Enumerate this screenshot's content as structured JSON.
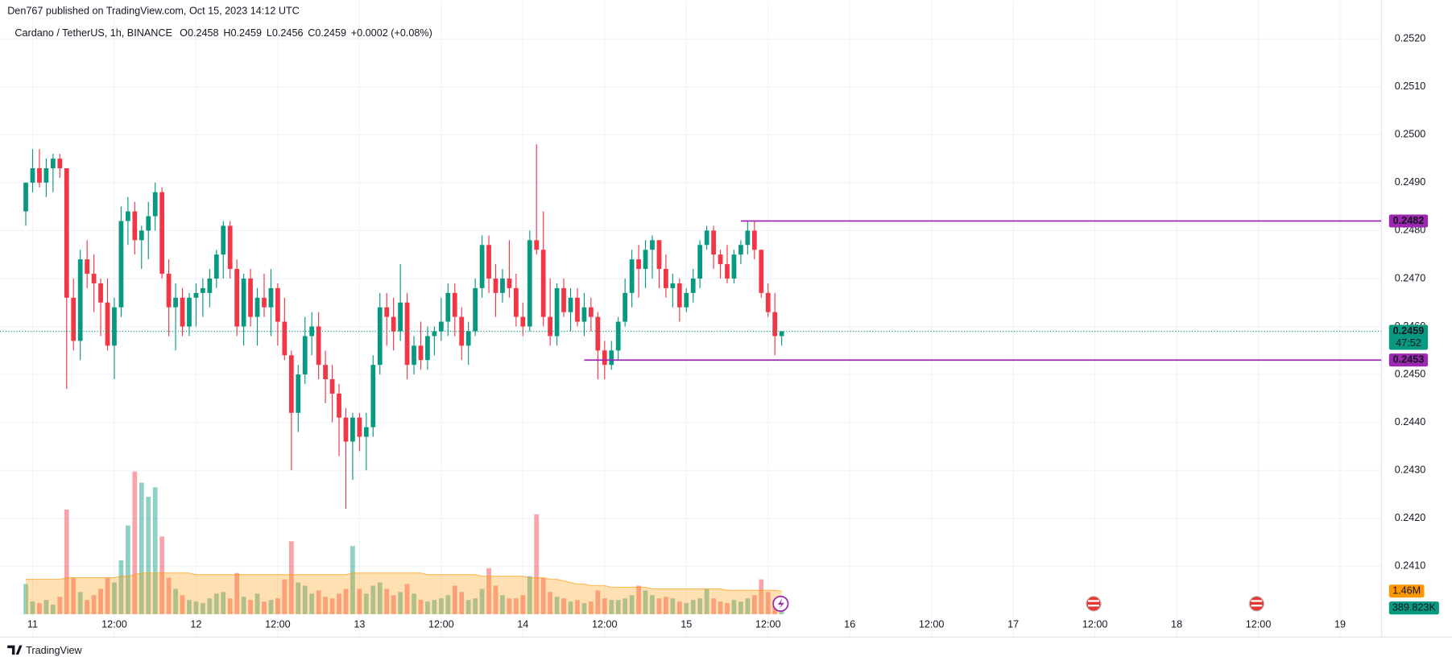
{
  "header": {
    "published": "Den767 published on TradingView.com, Oct 15, 2023 14:12 UTC",
    "footer": "TradingView"
  },
  "chart_data": {
    "type": "candlestick",
    "title": "Cardano / TetherUS, 1h, BINANCE",
    "ohlc_legend": [
      {
        "key": "O",
        "value": "0.2458"
      },
      {
        "key": "H",
        "value": "0.2459"
      },
      {
        "key": "L",
        "value": "0.2456"
      },
      {
        "key": "C",
        "value": "0.2459"
      }
    ],
    "change": "+0.0002 (+0.08%)",
    "up_color": "#089981",
    "down_color": "#f23645",
    "grid": true,
    "xlim": [
      -3.7,
      198.1
    ],
    "ylim": [
      0.24,
      0.2524
    ],
    "xticks": [
      {
        "value": 0,
        "label": "11"
      },
      {
        "value": 12,
        "label": "12:00"
      },
      {
        "value": 24,
        "label": "12"
      },
      {
        "value": 36,
        "label": "12:00"
      },
      {
        "value": 48,
        "label": "13"
      },
      {
        "value": 60,
        "label": "12:00"
      },
      {
        "value": 72,
        "label": "14"
      },
      {
        "value": 84,
        "label": "12:00"
      },
      {
        "value": 96,
        "label": "15"
      },
      {
        "value": 108,
        "label": "12:00"
      },
      {
        "value": 120,
        "label": "16"
      },
      {
        "value": 132,
        "label": "12:00"
      },
      {
        "value": 144,
        "label": "17"
      },
      {
        "value": 156,
        "label": "12:00"
      },
      {
        "value": 168,
        "label": "18"
      },
      {
        "value": 180,
        "label": "12:00"
      },
      {
        "value": 192,
        "label": "19"
      }
    ],
    "yticks": [
      {
        "value": 0.241,
        "label": "0.2410"
      },
      {
        "value": 0.242,
        "label": "0.2420"
      },
      {
        "value": 0.243,
        "label": "0.2430"
      },
      {
        "value": 0.244,
        "label": "0.2440"
      },
      {
        "value": 0.245,
        "label": "0.2450"
      },
      {
        "value": 0.246,
        "label": "0.2460"
      },
      {
        "value": 0.247,
        "label": "0.2470"
      },
      {
        "value": 0.248,
        "label": "0.2480"
      },
      {
        "value": 0.249,
        "label": "0.2490"
      },
      {
        "value": 0.25,
        "label": "0.2500"
      },
      {
        "value": 0.251,
        "label": "0.2510"
      },
      {
        "value": 0.252,
        "label": "0.2520"
      }
    ],
    "x": [
      -1,
      0,
      1,
      2,
      3,
      4,
      5,
      6,
      7,
      8,
      9,
      10,
      11,
      12,
      13,
      14,
      15,
      16,
      17,
      18,
      19,
      20,
      21,
      22,
      23,
      24,
      25,
      26,
      27,
      28,
      29,
      30,
      31,
      32,
      33,
      34,
      35,
      36,
      37,
      38,
      39,
      40,
      41,
      42,
      43,
      44,
      45,
      46,
      47,
      48,
      49,
      50,
      51,
      52,
      53,
      54,
      55,
      56,
      57,
      58,
      59,
      60,
      61,
      62,
      63,
      64,
      65,
      66,
      67,
      68,
      69,
      70,
      71,
      72,
      73,
      74,
      75,
      76,
      77,
      78,
      79,
      80,
      81,
      82,
      83,
      84,
      85,
      86,
      87,
      88,
      89,
      90,
      91,
      92,
      93,
      94,
      95,
      96,
      97,
      98,
      99,
      100,
      101,
      102,
      103,
      104,
      105,
      106,
      107,
      108,
      109,
      110
    ],
    "open": [
      0.2484,
      0.249,
      0.2493,
      0.249,
      0.2493,
      0.2495,
      0.2493,
      0.2466,
      0.2457,
      0.2474,
      0.2471,
      0.2469,
      0.2465,
      0.2456,
      0.2464,
      0.2482,
      0.2484,
      0.2478,
      0.248,
      0.2483,
      0.2488,
      0.2471,
      0.2464,
      0.2466,
      0.246,
      0.2466,
      0.2467,
      0.2467,
      0.247,
      0.2475,
      0.2481,
      0.2472,
      0.246,
      0.247,
      0.2462,
      0.2466,
      0.2464,
      0.2468,
      0.2461,
      0.2454,
      0.2442,
      0.245,
      0.2458,
      0.246,
      0.2452,
      0.2449,
      0.2446,
      0.2441,
      0.2436,
      0.2441,
      0.2437,
      0.2439,
      0.2452,
      0.2464,
      0.2462,
      0.2459,
      0.2465,
      0.2452,
      0.2456,
      0.2453,
      0.2458,
      0.2459,
      0.2461,
      0.2467,
      0.2462,
      0.2456,
      0.2459,
      0.2468,
      0.2477,
      0.247,
      0.2467,
      0.247,
      0.2468,
      0.2462,
      0.246,
      0.2478,
      0.2476,
      0.2462,
      0.2458,
      0.2468,
      0.2463,
      0.2466,
      0.2461,
      0.2464,
      0.2462,
      0.2455,
      0.2452,
      0.2455,
      0.2461,
      0.2467,
      0.2474,
      0.2472,
      0.2476,
      0.2478,
      0.2472,
      0.2468,
      0.2469,
      0.2464,
      0.2467,
      0.247,
      0.2477,
      0.248,
      0.2475,
      0.2473,
      0.247,
      0.2475,
      0.2477,
      0.248,
      0.2476,
      0.2467,
      0.2463,
      0.2458
    ],
    "high": [
      0.249,
      0.2497,
      0.2497,
      0.2495,
      0.2496,
      0.2496,
      0.2493,
      0.247,
      0.2476,
      0.2478,
      0.2475,
      0.247,
      0.247,
      0.2466,
      0.2485,
      0.2487,
      0.2486,
      0.2481,
      0.2486,
      0.249,
      0.2489,
      0.2474,
      0.2469,
      0.2468,
      0.2467,
      0.2469,
      0.247,
      0.2472,
      0.2476,
      0.2482,
      0.2482,
      0.2474,
      0.2471,
      0.2472,
      0.2468,
      0.2471,
      0.2472,
      0.2469,
      0.2466,
      0.2455,
      0.2452,
      0.2462,
      0.2463,
      0.2463,
      0.2455,
      0.2452,
      0.2448,
      0.2443,
      0.2442,
      0.2442,
      0.2442,
      0.2454,
      0.2467,
      0.2467,
      0.2466,
      0.2473,
      0.2467,
      0.2458,
      0.2461,
      0.246,
      0.246,
      0.2466,
      0.2469,
      0.2469,
      0.2464,
      0.2461,
      0.247,
      0.2479,
      0.2479,
      0.2473,
      0.2472,
      0.2478,
      0.2471,
      0.2465,
      0.248,
      0.2498,
      0.2484,
      0.247,
      0.2469,
      0.247,
      0.2468,
      0.2468,
      0.2467,
      0.2466,
      0.2463,
      0.2457,
      0.2457,
      0.2462,
      0.247,
      0.2476,
      0.2477,
      0.2478,
      0.2479,
      0.2478,
      0.2475,
      0.2471,
      0.247,
      0.2468,
      0.2472,
      0.2478,
      0.2481,
      0.2481,
      0.2476,
      0.2477,
      0.2476,
      0.2478,
      0.2482,
      0.2482,
      0.2476,
      0.2469,
      0.2467,
      0.2459
    ],
    "low": [
      0.2481,
      0.2488,
      0.2489,
      0.2487,
      0.2488,
      0.2491,
      0.2447,
      0.2455,
      0.2453,
      0.2468,
      0.2463,
      0.2458,
      0.2455,
      0.2449,
      0.2462,
      0.2477,
      0.2475,
      0.2472,
      0.2474,
      0.248,
      0.247,
      0.2458,
      0.2455,
      0.2458,
      0.2458,
      0.246,
      0.2462,
      0.2464,
      0.2468,
      0.247,
      0.247,
      0.2458,
      0.2456,
      0.246,
      0.2456,
      0.2462,
      0.2458,
      0.2456,
      0.2453,
      0.243,
      0.2438,
      0.2448,
      0.2454,
      0.2449,
      0.2444,
      0.244,
      0.2433,
      0.2422,
      0.2428,
      0.2434,
      0.243,
      0.2437,
      0.245,
      0.2456,
      0.2455,
      0.2457,
      0.2449,
      0.245,
      0.2451,
      0.2451,
      0.2454,
      0.2457,
      0.2458,
      0.2458,
      0.2453,
      0.2452,
      0.2458,
      0.2466,
      0.2467,
      0.2462,
      0.2465,
      0.2466,
      0.246,
      0.2458,
      0.2459,
      0.2475,
      0.246,
      0.2456,
      0.2456,
      0.2462,
      0.2459,
      0.246,
      0.2458,
      0.2459,
      0.2449,
      0.2449,
      0.2451,
      0.2453,
      0.246,
      0.2464,
      0.2466,
      0.2468,
      0.247,
      0.2468,
      0.2466,
      0.2464,
      0.2461,
      0.2463,
      0.2465,
      0.2468,
      0.2476,
      0.2472,
      0.247,
      0.2469,
      0.2469,
      0.2473,
      0.2475,
      0.2474,
      0.2466,
      0.2462,
      0.2454,
      0.2456
    ],
    "close": [
      0.249,
      0.2493,
      0.249,
      0.2493,
      0.2495,
      0.2493,
      0.2466,
      0.2457,
      0.2474,
      0.2471,
      0.2469,
      0.2465,
      0.2456,
      0.2464,
      0.2482,
      0.2484,
      0.2478,
      0.248,
      0.2483,
      0.2488,
      0.2471,
      0.2464,
      0.2466,
      0.246,
      0.2466,
      0.2467,
      0.2468,
      0.247,
      0.2475,
      0.2481,
      0.2472,
      0.246,
      0.247,
      0.2462,
      0.2466,
      0.2464,
      0.2468,
      0.2461,
      0.2454,
      0.2442,
      0.245,
      0.2458,
      0.246,
      0.2452,
      0.2449,
      0.2446,
      0.2441,
      0.2436,
      0.2441,
      0.2437,
      0.2439,
      0.2452,
      0.2464,
      0.2462,
      0.2459,
      0.2465,
      0.2452,
      0.2456,
      0.2453,
      0.2458,
      0.2459,
      0.2461,
      0.2467,
      0.2462,
      0.2456,
      0.2459,
      0.2468,
      0.2477,
      0.247,
      0.2467,
      0.247,
      0.2468,
      0.2462,
      0.246,
      0.2478,
      0.2476,
      0.2462,
      0.2458,
      0.2468,
      0.2463,
      0.2466,
      0.2461,
      0.2464,
      0.2462,
      0.2455,
      0.2452,
      0.2455,
      0.2461,
      0.2467,
      0.2474,
      0.2472,
      0.2476,
      0.2478,
      0.2472,
      0.2468,
      0.2469,
      0.2464,
      0.2467,
      0.247,
      0.2477,
      0.248,
      0.2475,
      0.2473,
      0.247,
      0.2475,
      0.2477,
      0.248,
      0.2476,
      0.2467,
      0.2463,
      0.2458,
      0.2459
    ],
    "volume": [
      1900000,
      800000,
      700000,
      900000,
      600000,
      1100000,
      6600000,
      2300000,
      1400000,
      900000,
      1200000,
      1600000,
      2300000,
      2000000,
      3400000,
      5600000,
      9000000,
      8300000,
      7400000,
      8000000,
      4900000,
      2300000,
      1600000,
      1200000,
      900000,
      800000,
      700000,
      1000000,
      1300000,
      1400000,
      1000000,
      2600000,
      1100000,
      900000,
      1300000,
      800000,
      900000,
      1000000,
      2200000,
      4600000,
      2000000,
      1800000,
      1300000,
      1500000,
      1100000,
      1000000,
      1300000,
      1600000,
      4300000,
      1600000,
      1300000,
      1800000,
      2000000,
      1600000,
      1200000,
      1400000,
      1900000,
      1300000,
      900000,
      800000,
      900000,
      1000000,
      1200000,
      1800000,
      1400000,
      900000,
      1000000,
      1600000,
      2900000,
      1800000,
      1200000,
      1000000,
      1000000,
      1200000,
      2400000,
      6300000,
      2300000,
      1400000,
      1100000,
      1000000,
      800000,
      900000,
      700000,
      800000,
      1500000,
      1000000,
      900000,
      900000,
      1000000,
      1200000,
      1800000,
      1500000,
      1200000,
      1000000,
      1100000,
      1000000,
      800000,
      700000,
      900000,
      1000000,
      1600000,
      1000000,
      800000,
      700000,
      900000,
      800000,
      1000000,
      1200000,
      2200000,
      1400000,
      900000,
      389823
    ],
    "volume_ma": [
      2200000,
      2200000,
      2200000,
      2200000,
      2200000,
      2200000,
      2300000,
      2300000,
      2300000,
      2300000,
      2300000,
      2300000,
      2300000,
      2300000,
      2400000,
      2400000,
      2500000,
      2600000,
      2600000,
      2600000,
      2600000,
      2600000,
      2600000,
      2600000,
      2600000,
      2500000,
      2500000,
      2500000,
      2500000,
      2500000,
      2500000,
      2500000,
      2500000,
      2500000,
      2500000,
      2500000,
      2500000,
      2500000,
      2500000,
      2500000,
      2500000,
      2500000,
      2500000,
      2500000,
      2500000,
      2500000,
      2500000,
      2500000,
      2600000,
      2600000,
      2600000,
      2600000,
      2600000,
      2600000,
      2600000,
      2600000,
      2600000,
      2600000,
      2600000,
      2500000,
      2500000,
      2500000,
      2500000,
      2500000,
      2500000,
      2500000,
      2500000,
      2400000,
      2400000,
      2400000,
      2400000,
      2400000,
      2400000,
      2400000,
      2300000,
      2300000,
      2300000,
      2200000,
      2200000,
      2100000,
      2000000,
      1900000,
      1900000,
      1800000,
      1800000,
      1800000,
      1700000,
      1700000,
      1700000,
      1700000,
      1700000,
      1700000,
      1600000,
      1600000,
      1600000,
      1600000,
      1600000,
      1600000,
      1600000,
      1600000,
      1600000,
      1600000,
      1600000,
      1500000,
      1500000,
      1500000,
      1500000,
      1500000,
      1500000,
      1500000,
      1500000,
      1460000
    ],
    "volume_ylim": [
      0,
      37500000
    ],
    "volume_last_label": "389.823K",
    "volume_ma_last_label": "1.46M",
    "volume_ma_color": "#ff9800",
    "last_price": {
      "value": 0.2459,
      "label": "0.2459",
      "countdown": "47:52"
    },
    "levels": [
      {
        "value": 0.2482,
        "label": "0.2482",
        "start_x": 104,
        "color": "#9c27b0"
      },
      {
        "value": 0.2453,
        "label": "0.2453",
        "start_x": 81,
        "color": "#9c27b0"
      }
    ]
  }
}
